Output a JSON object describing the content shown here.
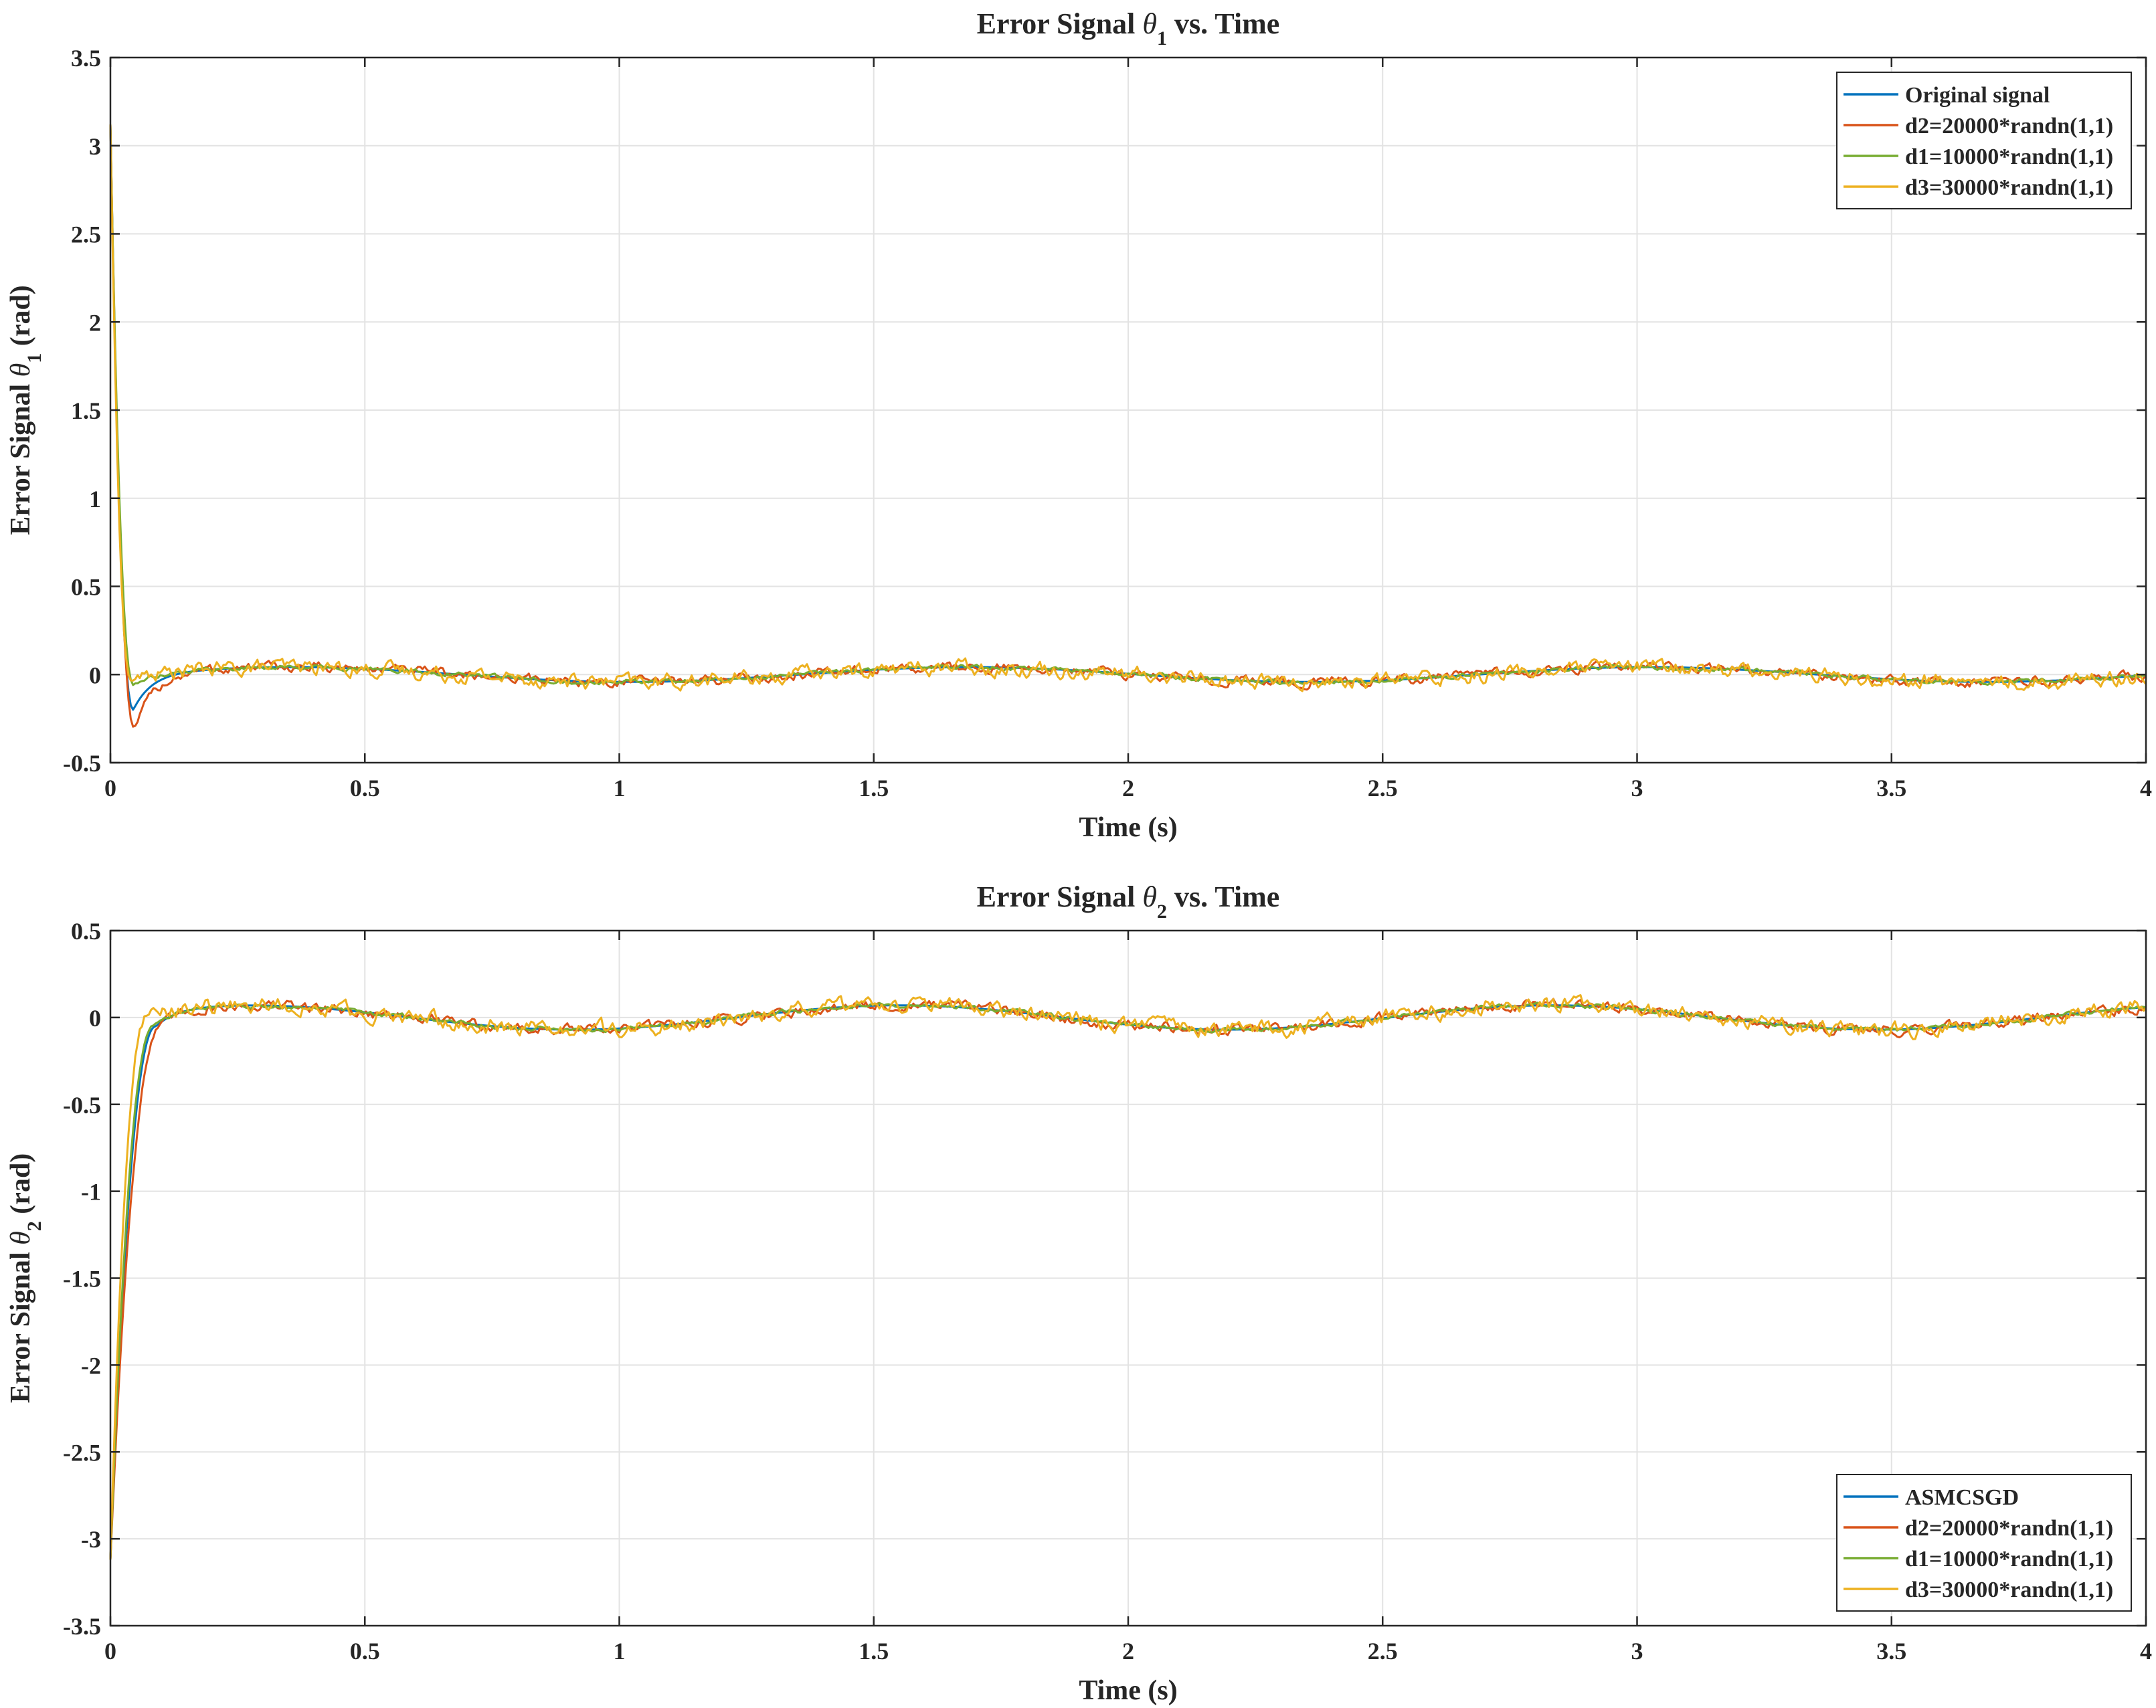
{
  "chart_data": [
    {
      "type": "line",
      "title": "Error Signal θ₁ vs. Time",
      "title_parts": {
        "pre": "Error Signal ",
        "sym": "θ",
        "sub": "1",
        "post": " vs. Time"
      },
      "xlabel": "Time (s)",
      "ylabel": "Error Signal θ₁ (rad)",
      "ylabel_parts": {
        "pre": "Error Signal ",
        "sym": "θ",
        "sub": "1",
        "post": " (rad)"
      },
      "xlim": [
        0,
        4
      ],
      "ylim": [
        -0.5,
        3.5
      ],
      "xticks": [
        0,
        0.5,
        1,
        1.5,
        2,
        2.5,
        3,
        3.5,
        4
      ],
      "xtick_labels": [
        "0",
        "0.5",
        "1",
        "1.5",
        "2",
        "2.5",
        "3",
        "3.5",
        "4"
      ],
      "yticks": [
        -0.5,
        0,
        0.5,
        1,
        1.5,
        2,
        2.5,
        3,
        3.5
      ],
      "ytick_labels": [
        "-0.5",
        "0",
        "0.5",
        "1",
        "1.5",
        "2",
        "2.5",
        "3",
        "3.5"
      ],
      "grid": true,
      "legend_position": "top-right",
      "transient": {
        "y0": 3.12,
        "dips": [
          -0.2,
          -0.32,
          -0.06,
          -0.03
        ],
        "tmins": [
          0.045,
          0.048,
          0.045,
          0.04
        ]
      },
      "baseline": {
        "amp": 0.042,
        "freq": 0.75,
        "phase": -0.1
      },
      "series": [
        {
          "name": "Original signal",
          "color": "#0072BD",
          "noise": 0
        },
        {
          "name": "d2=20000*randn(1,1)",
          "color": "#D95319",
          "noise": 0.022
        },
        {
          "name": "d1=10000*randn(1,1)",
          "color": "#77AC30",
          "noise": 0.01
        },
        {
          "name": "d3=30000*randn(1,1)",
          "color": "#EDB120",
          "noise": 0.034
        }
      ]
    },
    {
      "type": "line",
      "title": "Error Signal θ₂ vs. Time",
      "title_parts": {
        "pre": "Error Signal ",
        "sym": "θ",
        "sub": "2",
        "post": " vs. Time"
      },
      "xlabel": "Time (s)",
      "ylabel": "Error Signal θ₂ (rad)",
      "ylabel_parts": {
        "pre": "Error Signal ",
        "sym": "θ",
        "sub": "2",
        "post": " (rad)"
      },
      "xlim": [
        0,
        4
      ],
      "ylim": [
        -3.5,
        0.5
      ],
      "xticks": [
        0,
        0.5,
        1,
        1.5,
        2,
        2.5,
        3,
        3.5,
        4
      ],
      "xtick_labels": [
        "0",
        "0.5",
        "1",
        "1.5",
        "2",
        "2.5",
        "3",
        "3.5",
        "4"
      ],
      "yticks": [
        -3.5,
        -3,
        -2.5,
        -2,
        -1.5,
        -1,
        -0.5,
        0,
        0.5
      ],
      "ytick_labels": [
        "-3.5",
        "-3",
        "-2.5",
        "-2",
        "-1.5",
        "-1",
        "-0.5",
        "0",
        "0.5"
      ],
      "grid": true,
      "legend_position": "bottom-right",
      "transient": {
        "y0": -3.12,
        "dips": [
          -0.05,
          -0.06,
          -0.05,
          0.0
        ],
        "tmins": [
          0.09,
          0.1,
          0.085,
          0.07
        ]
      },
      "baseline": {
        "amp": 0.07,
        "freq": 0.78,
        "phase": 0.25
      },
      "series": [
        {
          "name": "ASMCSGD",
          "color": "#0072BD",
          "noise": 0
        },
        {
          "name": "d2=20000*randn(1,1)",
          "color": "#D95319",
          "noise": 0.024
        },
        {
          "name": "d1=10000*randn(1,1)",
          "color": "#77AC30",
          "noise": 0.01
        },
        {
          "name": "d3=30000*randn(1,1)",
          "color": "#EDB120",
          "noise": 0.036
        }
      ]
    }
  ]
}
